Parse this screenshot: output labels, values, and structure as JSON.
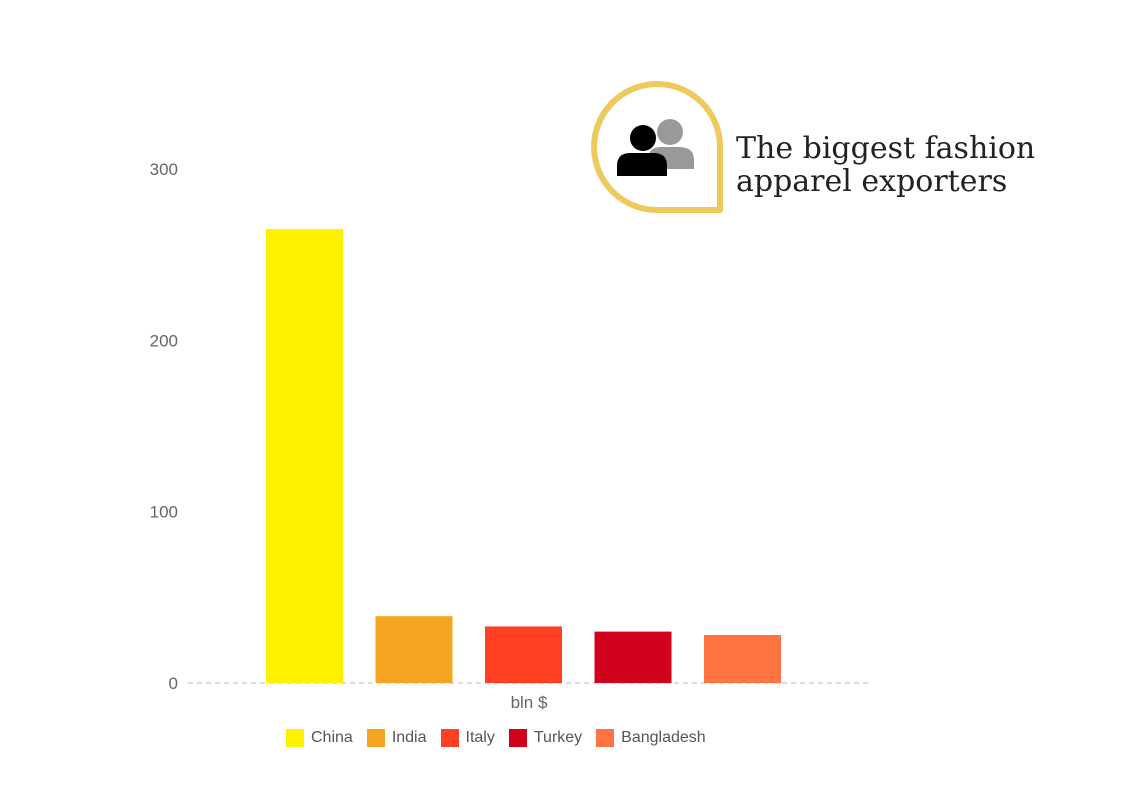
{
  "title": "The biggest fashion\napparel exporters",
  "icon": "people-icon",
  "colors": {
    "badge_outline": "#EEC95C",
    "front_person": "#000000",
    "back_person": "#999999",
    "axis": "#bbbbbb"
  },
  "chart_data": {
    "type": "bar",
    "title": "The biggest fashion apparel exporters",
    "xlabel": "bln $",
    "ylabel": "",
    "ylim": [
      0,
      300
    ],
    "yticks": [
      0,
      100,
      200,
      300
    ],
    "categories": [
      "bln $"
    ],
    "series": [
      {
        "name": "China",
        "values": [
          265
        ],
        "color": "#FFF200"
      },
      {
        "name": "India",
        "values": [
          39
        ],
        "color": "#F4A623"
      },
      {
        "name": "Italy",
        "values": [
          33
        ],
        "color": "#FF4022"
      },
      {
        "name": "Turkey",
        "values": [
          30
        ],
        "color": "#D0021B"
      },
      {
        "name": "Bangladesh",
        "values": [
          28
        ],
        "color": "#FF7342"
      }
    ],
    "grid": false,
    "legend": "bottom"
  }
}
